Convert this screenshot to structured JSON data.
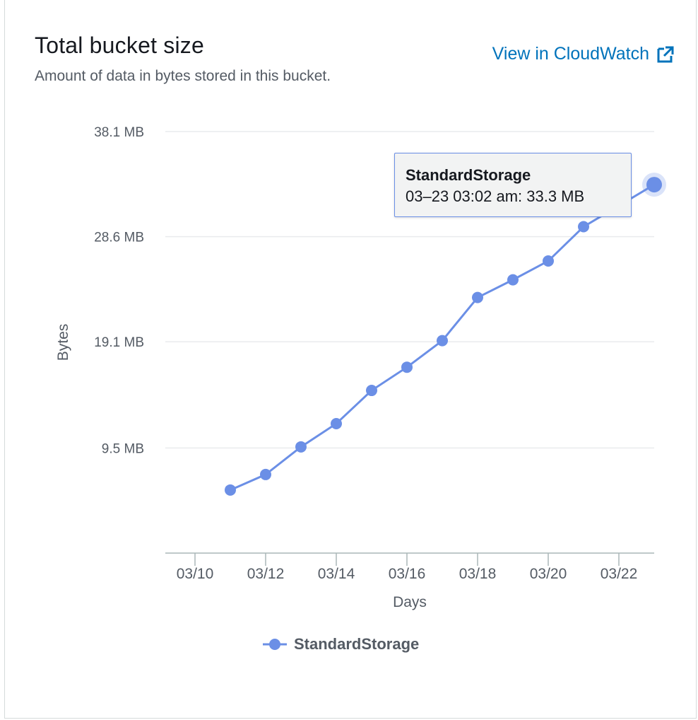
{
  "header": {
    "title": "Total bucket size",
    "subtitle": "Amount of data in bytes stored in this bucket.",
    "link_label": "View in CloudWatch"
  },
  "colors": {
    "series": "#6b8fe6",
    "link": "#0073bb",
    "grid": "#e9ebed"
  },
  "icons": {
    "external_link": "external-link-icon"
  },
  "tooltip": {
    "series": "StandardStorage",
    "label": "03–23 03:02 am: 33.3 MB"
  },
  "chart_data": {
    "type": "line",
    "title": "Total bucket size",
    "xlabel": "Days",
    "ylabel": "Bytes",
    "x_ticks": [
      "03/10",
      "03/12",
      "03/14",
      "03/16",
      "03/18",
      "03/20",
      "03/22"
    ],
    "y_ticks": [
      "38.1 MB",
      "28.6 MB",
      "19.1 MB",
      "9.5 MB"
    ],
    "y_tick_values": [
      38.1,
      28.6,
      19.1,
      9.5
    ],
    "ylim": [
      0,
      38.1
    ],
    "xlim": [
      "03/09",
      "03/23"
    ],
    "grid": true,
    "legend_position": "bottom-center",
    "series": [
      {
        "name": "StandardStorage",
        "x": [
          "03/11",
          "03/12",
          "03/13",
          "03/14",
          "03/15",
          "03/16",
          "03/17",
          "03/18",
          "03/19",
          "03/20",
          "03/21",
          "03/23"
        ],
        "values": [
          5.7,
          7.1,
          9.6,
          11.7,
          14.7,
          16.8,
          19.2,
          23.1,
          24.7,
          26.4,
          29.5,
          33.3
        ]
      }
    ]
  }
}
